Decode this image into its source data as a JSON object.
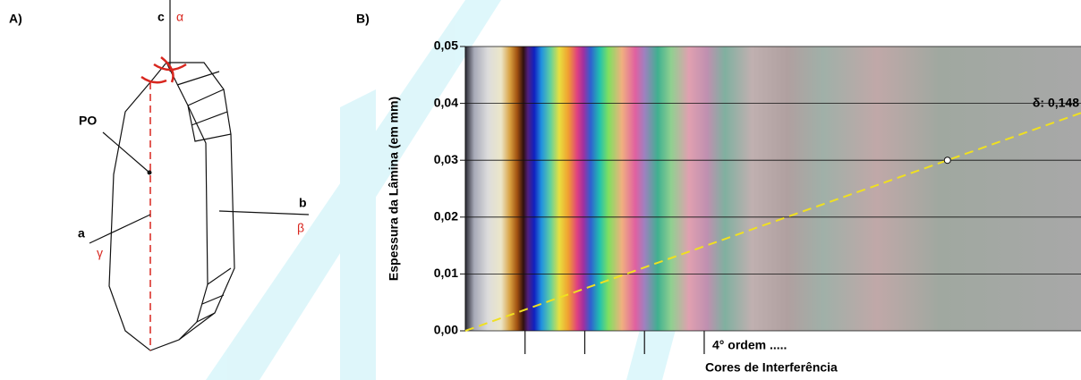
{
  "panel_a": {
    "label": "A)",
    "axis_c": "c",
    "alpha": "α",
    "po": "PO",
    "axis_b": "b",
    "beta": "β",
    "axis_a": "a",
    "gamma": "γ"
  },
  "chart_data": {
    "type": "michel-levy",
    "panel_label": "B)",
    "ylabel": "Espessura da Lâmina (em mm)",
    "xlabel": "Cores de Interferência",
    "order_label": "4° ordem .....",
    "annotation": "δ: 0,148",
    "birefringence": 0.148,
    "point_thickness": 0.03,
    "xlim": [
      0,
      5670
    ],
    "xticks": [
      550,
      1100,
      1650,
      2200
    ],
    "ylim": [
      0,
      0.05
    ],
    "yticks": [
      {
        "value": 0,
        "label": "0,00"
      },
      {
        "value": 0.01,
        "label": "0,01"
      },
      {
        "value": 0.02,
        "label": "0,02"
      },
      {
        "value": 0.03,
        "label": "0,03"
      },
      {
        "value": 0.04,
        "label": "0,04"
      },
      {
        "value": 0.05,
        "label": "0,05"
      }
    ],
    "grid": true,
    "line_color": "#f0e020"
  }
}
